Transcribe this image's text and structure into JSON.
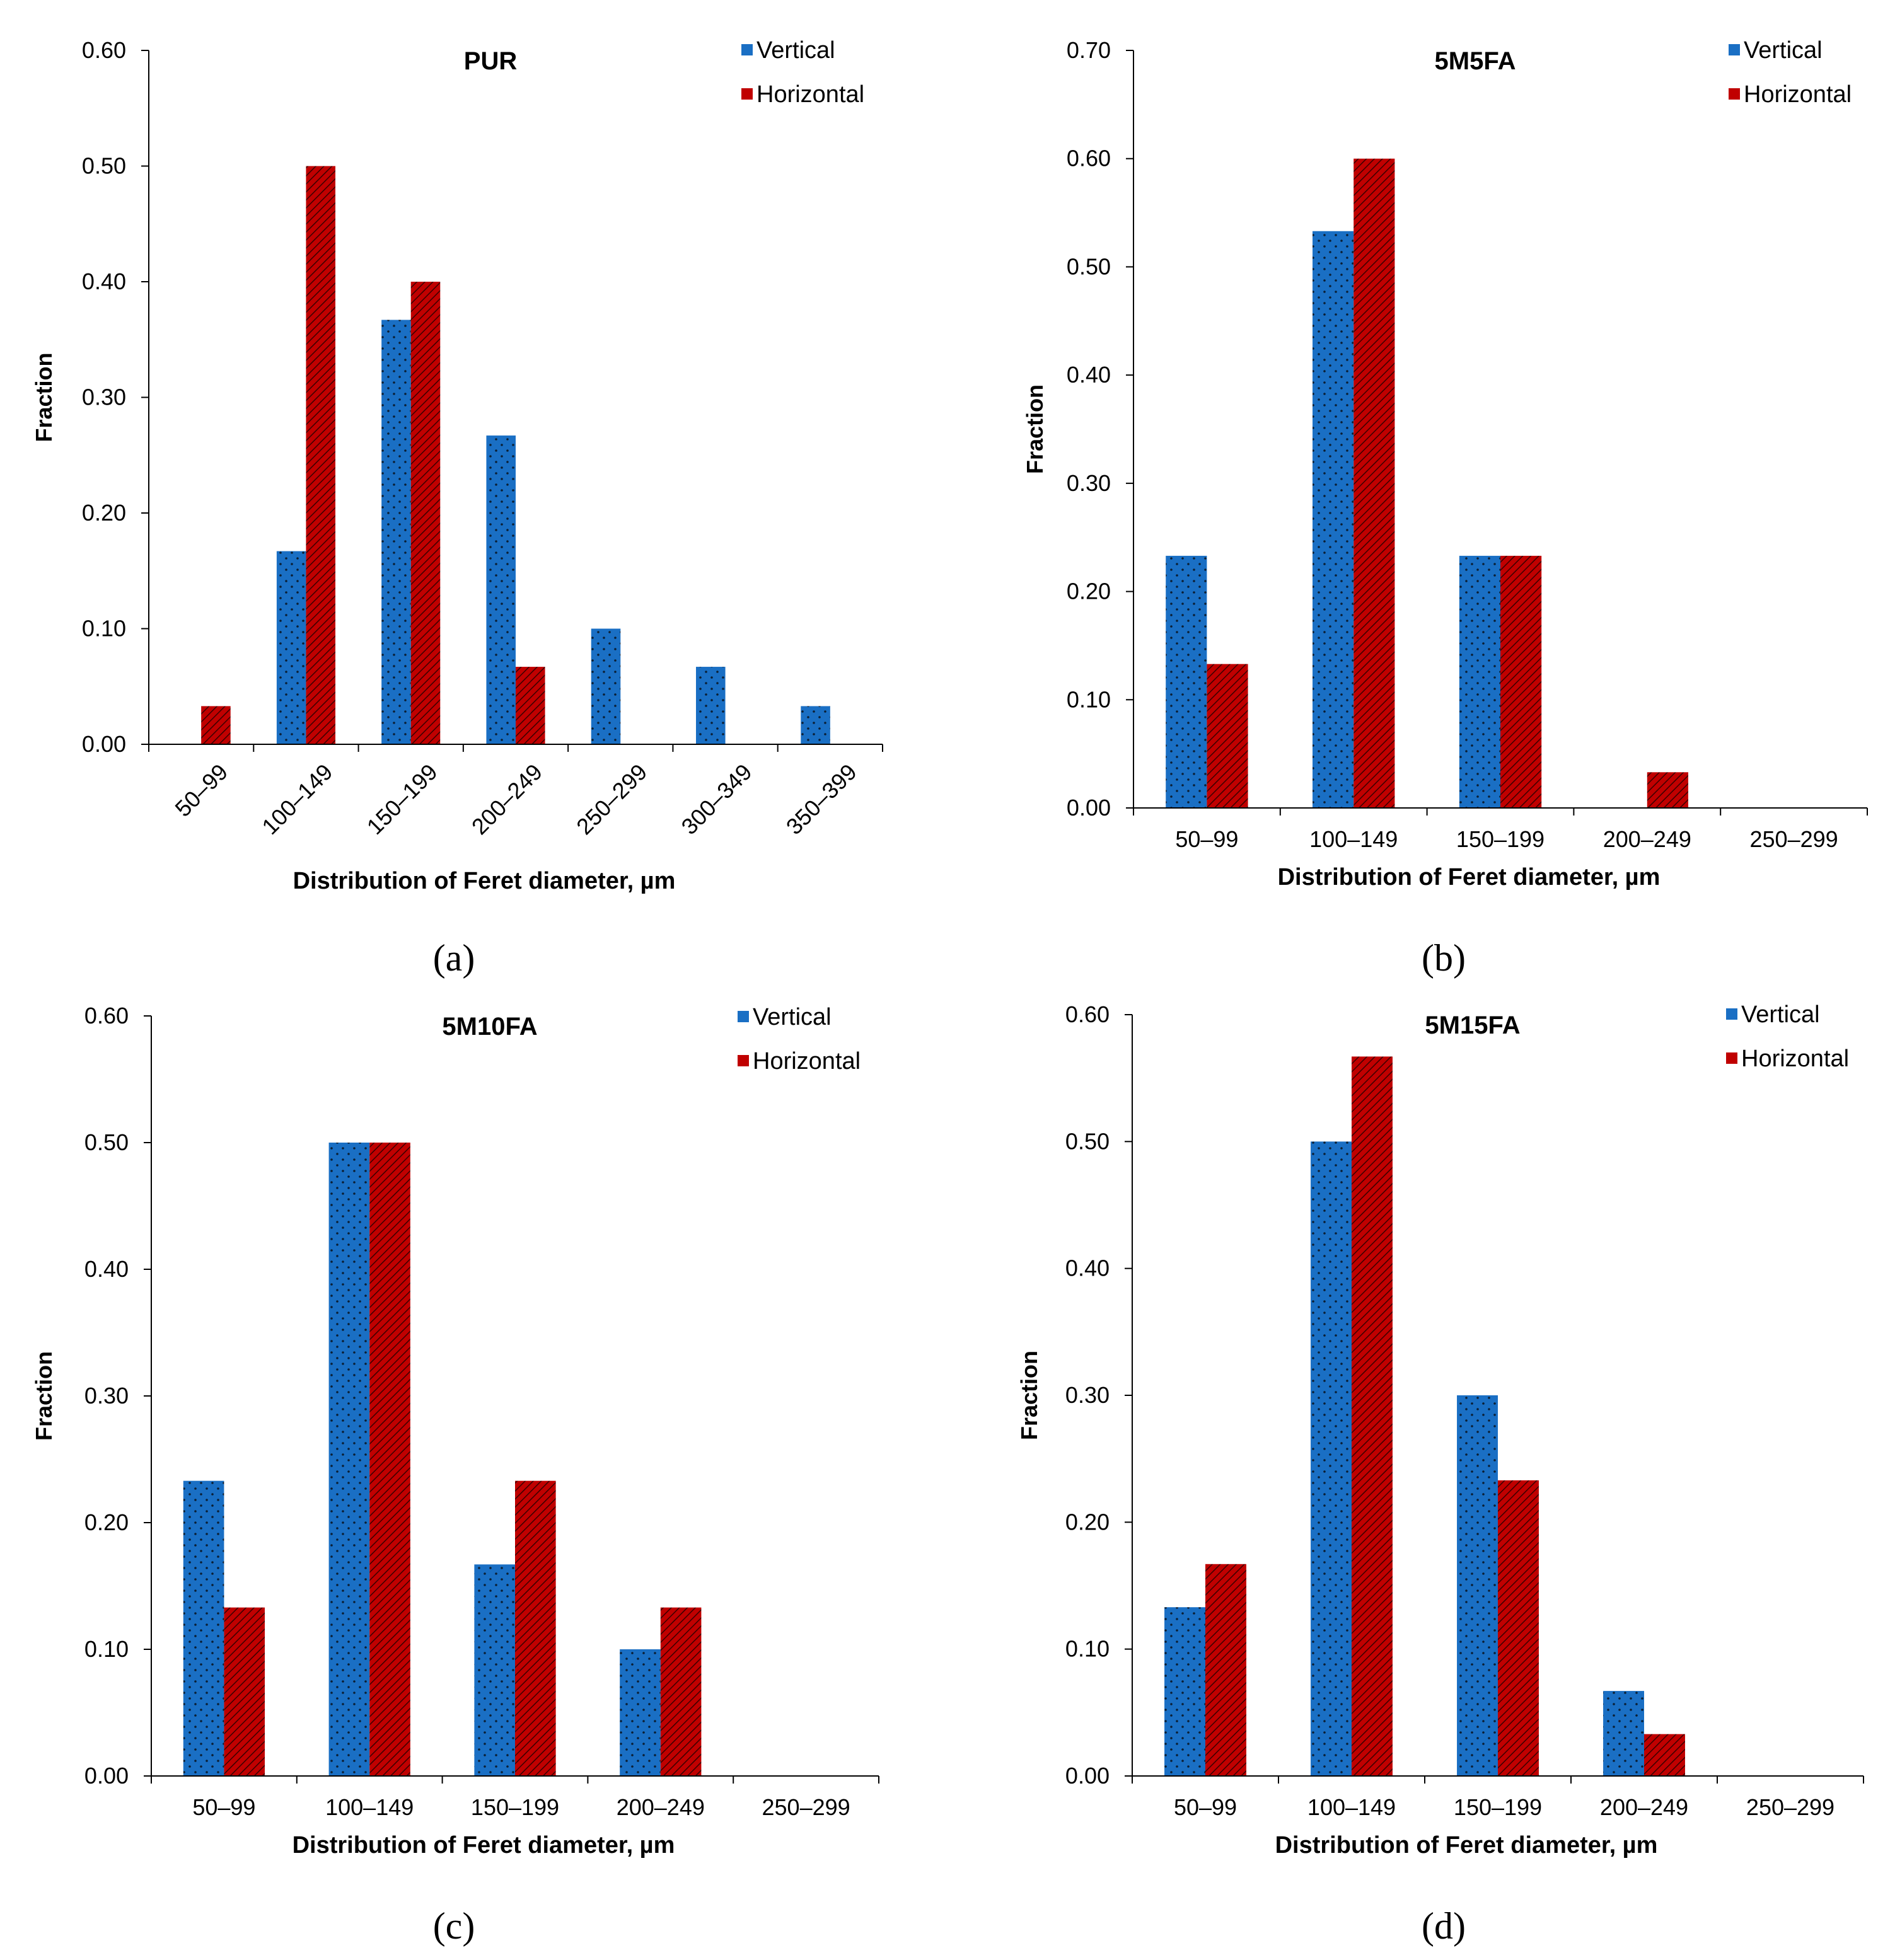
{
  "chart_data": [
    {
      "type": "bar",
      "panel_label": "(a)",
      "title": "PUR",
      "xlabel": "Distribution of Feret diameter, µm",
      "ylabel": "Fraction",
      "ylim": [
        0,
        0.6
      ],
      "yticks": [
        "0.00",
        "0.10",
        "0.20",
        "0.30",
        "0.40",
        "0.50",
        "0.60"
      ],
      "categories": [
        "50–99",
        "100–149",
        "150–199",
        "200–249",
        "250–299",
        "300–349",
        "350–399"
      ],
      "rotated_tick_labels": true,
      "legend": "top-right",
      "series": [
        {
          "name": "Vertical",
          "color": "#1a6fc4",
          "values": [
            0,
            0.167,
            0.367,
            0.267,
            0.1,
            0.067,
            0.033
          ]
        },
        {
          "name": "Horizontal",
          "color": "#c00000",
          "values": [
            0.033,
            0.5,
            0.4,
            0.067,
            0,
            0,
            0
          ]
        }
      ]
    },
    {
      "type": "bar",
      "panel_label": "(b)",
      "title": "5M5FA",
      "xlabel": "Distribution of Feret diameter, µm",
      "ylabel": "Fraction",
      "ylim": [
        0,
        0.7
      ],
      "yticks": [
        "0.00",
        "0.10",
        "0.20",
        "0.30",
        "0.40",
        "0.50",
        "0.60",
        "0.70"
      ],
      "categories": [
        "50–99",
        "100–149",
        "150–199",
        "200–249",
        "250–299"
      ],
      "rotated_tick_labels": false,
      "legend": "top-right",
      "series": [
        {
          "name": "Vertical",
          "color": "#1a6fc4",
          "values": [
            0.233,
            0.533,
            0.233,
            0,
            0
          ]
        },
        {
          "name": "Horizontal",
          "color": "#c00000",
          "values": [
            0.133,
            0.6,
            0.233,
            0.033,
            0
          ]
        }
      ]
    },
    {
      "type": "bar",
      "panel_label": "(c)",
      "title": "5M10FA",
      "xlabel": "Distribution of Feret diameter, µm",
      "ylabel": "Fraction",
      "ylim": [
        0,
        0.6
      ],
      "yticks": [
        "0.00",
        "0.10",
        "0.20",
        "0.30",
        "0.40",
        "0.50",
        "0.60"
      ],
      "categories": [
        "50–99",
        "100–149",
        "150–199",
        "200–249",
        "250–299"
      ],
      "rotated_tick_labels": false,
      "legend": "top-right",
      "series": [
        {
          "name": "Vertical",
          "color": "#1a6fc4",
          "values": [
            0.233,
            0.5,
            0.167,
            0.1,
            0
          ]
        },
        {
          "name": "Horizontal",
          "color": "#c00000",
          "values": [
            0.133,
            0.5,
            0.233,
            0.133,
            0
          ]
        }
      ]
    },
    {
      "type": "bar",
      "panel_label": "(d)",
      "title": "5M15FA",
      "xlabel": "Distribution of Feret diameter, µm",
      "ylabel": "Fraction",
      "ylim": [
        0,
        0.6
      ],
      "yticks": [
        "0.00",
        "0.10",
        "0.20",
        "0.30",
        "0.40",
        "0.50",
        "0.60"
      ],
      "categories": [
        "50–99",
        "100–149",
        "150–199",
        "200–249",
        "250–299"
      ],
      "rotated_tick_labels": false,
      "legend": "top-right",
      "series": [
        {
          "name": "Vertical",
          "color": "#1a6fc4",
          "values": [
            0.133,
            0.5,
            0.3,
            0.067,
            0
          ]
        },
        {
          "name": "Horizontal",
          "color": "#c00000",
          "values": [
            0.167,
            0.567,
            0.233,
            0.033,
            0
          ]
        }
      ]
    }
  ]
}
